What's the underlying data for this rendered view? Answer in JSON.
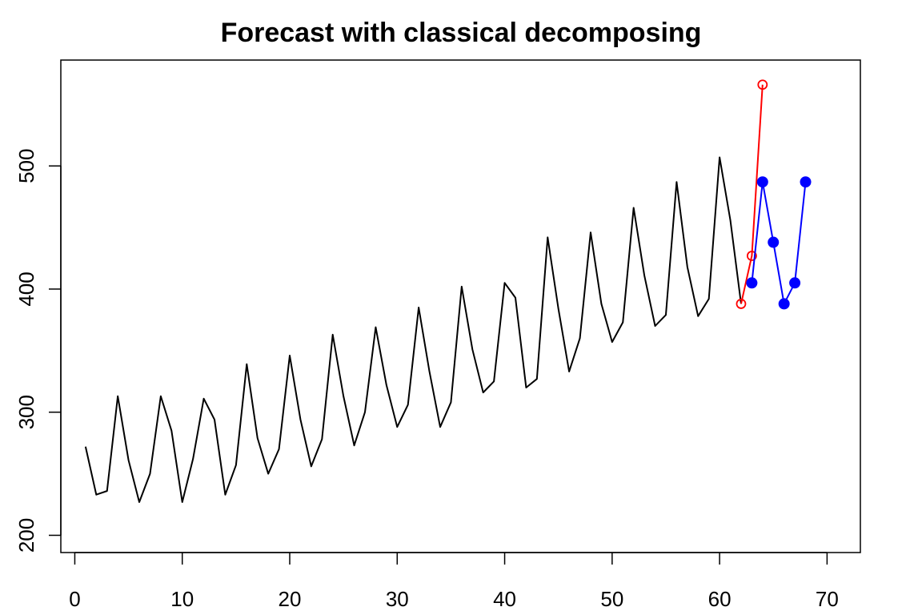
{
  "chart_data": {
    "type": "line",
    "title": "Forecast with classical decomposing",
    "xlabel": "",
    "ylabel": "",
    "xlim": [
      -1.3,
      73.1
    ],
    "ylim": [
      186,
      586
    ],
    "x_ticks": [
      0,
      10,
      20,
      30,
      40,
      50,
      60,
      70
    ],
    "y_ticks": [
      200,
      300,
      400,
      500
    ],
    "grid": false,
    "series": [
      {
        "style": "line",
        "color": "#000000",
        "x": [
          1,
          2,
          3,
          4,
          5,
          6,
          7,
          8,
          9,
          10,
          11,
          12,
          13,
          14,
          15,
          16,
          17,
          18,
          19,
          20,
          21,
          22,
          23,
          24,
          25,
          26,
          27,
          28,
          29,
          30,
          31,
          32,
          33,
          34,
          35,
          36,
          37,
          38,
          39,
          40,
          41,
          42,
          43,
          44,
          45,
          46,
          47,
          48,
          49,
          50,
          51,
          52,
          53,
          54,
          55,
          56,
          57,
          58,
          59,
          60,
          61,
          62
        ],
        "y": [
          272,
          233,
          236,
          313,
          261,
          227,
          250,
          313,
          285,
          227,
          262,
          311,
          294,
          233,
          257,
          339,
          279,
          250,
          270,
          346,
          294,
          256,
          278,
          363,
          313,
          273,
          300,
          369,
          322,
          288,
          306,
          385,
          333,
          288,
          308,
          402,
          351,
          316,
          325,
          405,
          393,
          320,
          327,
          442,
          384,
          333,
          360,
          446,
          388,
          357,
          373,
          466,
          411,
          370,
          379,
          487,
          418,
          378,
          392,
          507,
          456,
          388
        ]
      },
      {
        "style": "line+open-circle",
        "color": "#ff0000",
        "x": [
          62,
          63,
          64
        ],
        "y": [
          388,
          427,
          566
        ]
      },
      {
        "style": "line+filled-circle",
        "color": "#0000ff",
        "x": [
          63,
          64,
          65,
          66,
          67,
          68
        ],
        "y": [
          405,
          487,
          438,
          388,
          405,
          487
        ]
      }
    ]
  }
}
